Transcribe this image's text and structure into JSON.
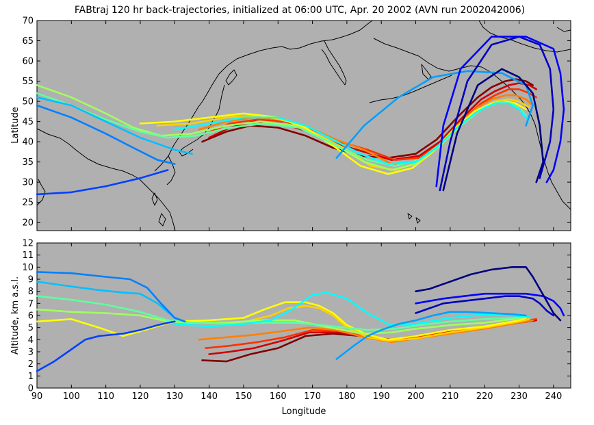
{
  "chart_data": [
    {
      "type": "line",
      "title": "FABtraj 120 hr back-trajectories, initialized at 06:00 UTC, Apr. 20 2002 (AVN run 2002042006)",
      "xlabel": "",
      "ylabel": "Latitude",
      "xlim": [
        90,
        245
      ],
      "ylim": [
        18,
        70
      ],
      "yticks": [
        20,
        25,
        30,
        35,
        40,
        45,
        50,
        55,
        60,
        65,
        70
      ],
      "background": "#b0b0b0",
      "grid": false,
      "coastlines": "North Pacific (East Asia, Japan, Kamchatka, Aleutians, Alaska, North America west coast)",
      "series": [
        {
          "color": "#800000",
          "x": [
            138,
            145,
            152,
            160,
            168,
            176,
            184,
            192,
            200,
            206,
            212,
            218,
            222,
            226,
            229,
            232,
            234
          ],
          "y": [
            40,
            42.5,
            44,
            43.5,
            41.5,
            38.5,
            36.5,
            36,
            37,
            40.5,
            46,
            51,
            53.5,
            55,
            55.5,
            55,
            54
          ]
        },
        {
          "color": "#cc0000",
          "x": [
            140,
            146,
            153,
            161,
            169,
            177,
            185,
            193,
            201,
            207,
            213,
            219,
            223,
            227,
            230,
            233,
            235
          ],
          "y": [
            41,
            43.5,
            45,
            44.5,
            42.5,
            39.5,
            37.5,
            35.5,
            36.5,
            40,
            45.5,
            50.5,
            52.5,
            54,
            54.5,
            54,
            53
          ]
        },
        {
          "color": "#ff3000",
          "x": [
            139,
            146,
            154,
            162,
            170,
            178,
            186,
            194,
            201,
            207,
            213,
            219,
            223,
            227,
            230,
            233,
            235
          ],
          "y": [
            42,
            44.5,
            45.5,
            45,
            43,
            40,
            38,
            35.5,
            36,
            39.5,
            45,
            49.5,
            51.5,
            53,
            53,
            52,
            51
          ]
        },
        {
          "color": "#ff8000",
          "x": [
            137,
            145,
            153,
            161,
            169,
            177,
            185,
            193,
            200,
            206,
            212,
            218,
            222,
            226,
            229,
            232,
            234
          ],
          "y": [
            43,
            45,
            46,
            45.5,
            43.5,
            40.5,
            38,
            34.5,
            35,
            38.5,
            44,
            48.5,
            50.5,
            51.5,
            51.5,
            50.5,
            49
          ]
        },
        {
          "color": "#ffd000",
          "x": [
            125,
            135,
            145,
            155,
            163,
            171,
            179,
            187,
            194,
            201,
            207,
            213,
            219,
            223,
            227,
            230,
            233
          ],
          "y": [
            44,
            44.5,
            46,
            46.5,
            45,
            42,
            38.5,
            34,
            33,
            35,
            39,
            44,
            48,
            50,
            50.5,
            50,
            48.5
          ]
        },
        {
          "color": "#ffff00",
          "x": [
            120,
            130,
            140,
            150,
            160,
            168,
            176,
            184,
            192,
            199,
            205,
            211,
            217,
            222,
            226,
            229,
            232
          ],
          "y": [
            44.5,
            45,
            46,
            47,
            46,
            43.5,
            39,
            34,
            32,
            33.5,
            37.5,
            43,
            47.5,
            49.5,
            50,
            49.5,
            48
          ]
        },
        {
          "color": "#a0ff60",
          "x": [
            90,
            100,
            110,
            118,
            126,
            135,
            145,
            155,
            165,
            175,
            185,
            193,
            200,
            207,
            213,
            219,
            224,
            228,
            231
          ],
          "y": [
            54,
            51,
            47,
            43.5,
            41.5,
            42,
            44,
            45,
            44,
            40,
            35,
            33,
            34.5,
            39,
            44,
            48,
            50,
            49.5,
            47.5
          ]
        },
        {
          "color": "#60ffa0",
          "x": [
            90,
            100,
            110,
            120,
            128,
            136,
            146,
            156,
            166,
            176,
            186,
            194,
            201,
            208,
            214,
            220,
            225,
            229,
            232
          ],
          "y": [
            52,
            49,
            45.5,
            42.5,
            41,
            41.5,
            43.5,
            44.5,
            43.5,
            39.5,
            35.5,
            34,
            35.5,
            40,
            45,
            48.5,
            50,
            49,
            46.5
          ]
        },
        {
          "color": "#00ffff",
          "x": [
            130,
            140,
            150,
            160,
            168,
            176,
            184,
            192,
            200,
            206,
            212,
            218,
            223,
            227,
            230,
            233
          ],
          "y": [
            43,
            44.5,
            46,
            46,
            44,
            40.5,
            37,
            34.5,
            35,
            38.5,
            43.5,
            47.5,
            49.5,
            49.5,
            48,
            45
          ]
        },
        {
          "color": "#00c0ff",
          "x": [
            90,
            100,
            110,
            120,
            130,
            135
          ],
          "y": [
            51,
            49,
            45,
            41,
            38,
            37
          ]
        },
        {
          "color": "#0080ff",
          "x": [
            90,
            100,
            110,
            118,
            125,
            130
          ],
          "y": [
            49,
            46,
            42,
            38.5,
            35.5,
            34.5
          ]
        },
        {
          "color": "#0040ff",
          "x": [
            90,
            100,
            110,
            120,
            128
          ],
          "y": [
            27,
            27.5,
            29,
            31,
            33
          ]
        },
        {
          "color": "#00a0ff",
          "x": [
            177,
            185,
            195,
            205,
            215,
            225,
            232,
            234,
            232
          ],
          "y": [
            36,
            44,
            51,
            56,
            57.5,
            57,
            54,
            49,
            44
          ]
        },
        {
          "color": "#0000c0",
          "x": [
            207,
            210,
            215,
            222,
            230,
            236,
            239,
            240,
            239,
            237,
            236
          ],
          "y": [
            28,
            40,
            55,
            64,
            66,
            64,
            58,
            48,
            40,
            34,
            31
          ]
        },
        {
          "color": "#0000ff",
          "x": [
            206,
            208,
            213,
            222,
            232,
            240,
            242,
            243,
            242,
            240,
            238
          ],
          "y": [
            29,
            44,
            58,
            66,
            66,
            63,
            57,
            48,
            40,
            33,
            30
          ]
        },
        {
          "color": "#000080",
          "x": [
            208,
            212,
            218,
            225,
            230,
            234,
            236,
            237,
            235
          ],
          "y": [
            28,
            42,
            54,
            58,
            56,
            52,
            44,
            35,
            30
          ]
        }
      ]
    },
    {
      "type": "line",
      "title": "",
      "xlabel": "Longitude",
      "ylabel": "Altitude, km a.s.l.",
      "xlim": [
        90,
        245
      ],
      "ylim": [
        0,
        12
      ],
      "xticks": [
        90,
        100,
        110,
        120,
        130,
        140,
        150,
        160,
        170,
        180,
        190,
        200,
        210,
        220,
        230,
        240
      ],
      "yticks": [
        0,
        1,
        2,
        3,
        4,
        5,
        6,
        7,
        8,
        9,
        10,
        11,
        12
      ],
      "background": "#b0b0b0",
      "grid": false,
      "series": [
        {
          "color": "#800000",
          "x": [
            138,
            145,
            152,
            160,
            168,
            176,
            184,
            192,
            200,
            210,
            220,
            230,
            234
          ],
          "y": [
            2.3,
            2.2,
            2.8,
            3.3,
            4.3,
            4.5,
            4.3,
            4.0,
            4.3,
            4.6,
            5.0,
            5.4,
            5.6
          ]
        },
        {
          "color": "#cc0000",
          "x": [
            140,
            146,
            153,
            161,
            169,
            177,
            185,
            193,
            201,
            210,
            220,
            230,
            235
          ],
          "y": [
            2.8,
            3.0,
            3.3,
            3.9,
            4.6,
            4.6,
            4.3,
            4.0,
            4.3,
            4.7,
            5.0,
            5.4,
            5.6
          ]
        },
        {
          "color": "#ff3000",
          "x": [
            139,
            146,
            154,
            162,
            170,
            178,
            186,
            194,
            201,
            210,
            220,
            230,
            235
          ],
          "y": [
            3.3,
            3.5,
            3.8,
            4.2,
            4.8,
            4.7,
            4.2,
            3.9,
            4.2,
            4.6,
            5.0,
            5.5,
            5.7
          ]
        },
        {
          "color": "#ff8000",
          "x": [
            137,
            145,
            153,
            161,
            169,
            177,
            185,
            193,
            200,
            210,
            220,
            230,
            234
          ],
          "y": [
            4.0,
            4.2,
            4.4,
            4.7,
            5.0,
            4.8,
            4.2,
            3.8,
            4.1,
            4.5,
            4.9,
            5.4,
            5.6
          ]
        },
        {
          "color": "#ffd000",
          "x": [
            152,
            158,
            163,
            168,
            172,
            176,
            180,
            186,
            192,
            200,
            210,
            220,
            230,
            233
          ],
          "y": [
            5.6,
            6.0,
            6.6,
            6.8,
            6.6,
            6.0,
            5.0,
            4.2,
            3.9,
            4.1,
            4.6,
            5.0,
            5.5,
            5.7
          ]
        },
        {
          "color": "#ffff00",
          "x": [
            90,
            100,
            108,
            115,
            120,
            126,
            130,
            140,
            150,
            156,
            162,
            168,
            172,
            176,
            180,
            186,
            192,
            200,
            210,
            220,
            230,
            232
          ],
          "y": [
            5.5,
            5.7,
            5.0,
            4.3,
            4.7,
            5.2,
            5.5,
            5.6,
            5.8,
            6.5,
            7.1,
            7.1,
            6.8,
            6.2,
            5.2,
            4.4,
            4.0,
            4.3,
            4.8,
            5.1,
            5.6,
            5.8
          ]
        },
        {
          "color": "#a0ff60",
          "x": [
            90,
            100,
            110,
            120,
            128,
            135,
            145,
            155,
            165,
            175,
            185,
            193,
            200,
            210,
            220,
            228,
            231
          ],
          "y": [
            6.5,
            6.3,
            6.2,
            6.0,
            5.5,
            5.4,
            5.4,
            5.6,
            5.6,
            5.0,
            4.5,
            4.6,
            4.9,
            5.2,
            5.4,
            5.7,
            5.8
          ]
        },
        {
          "color": "#60ffa0",
          "x": [
            90,
            100,
            110,
            120,
            128,
            136,
            146,
            156,
            166,
            176,
            186,
            194,
            201,
            210,
            220,
            228,
            232
          ],
          "y": [
            7.6,
            7.3,
            6.9,
            6.3,
            5.6,
            5.4,
            5.3,
            5.4,
            5.4,
            5.1,
            4.8,
            4.9,
            5.2,
            5.5,
            5.7,
            5.8,
            5.9
          ]
        },
        {
          "color": "#00ffff",
          "x": [
            130,
            140,
            150,
            158,
            164,
            170,
            174,
            180,
            186,
            192,
            200,
            210,
            220,
            228,
            233
          ],
          "y": [
            5.3,
            5.1,
            5.3,
            5.6,
            6.5,
            7.7,
            7.9,
            7.4,
            6.2,
            5.3,
            5.3,
            5.8,
            6.1,
            6.0,
            5.9
          ]
        },
        {
          "color": "#00c0ff",
          "x": [
            90,
            100,
            108,
            115,
            120,
            125,
            130,
            133
          ],
          "y": [
            8.8,
            8.4,
            8.1,
            7.9,
            7.8,
            7.0,
            5.8,
            5.5
          ]
        },
        {
          "color": "#0080ff",
          "x": [
            90,
            100,
            110,
            117,
            122,
            126,
            130,
            133
          ],
          "y": [
            9.6,
            9.5,
            9.2,
            9.0,
            8.3,
            7.0,
            5.8,
            5.5
          ]
        },
        {
          "color": "#0040ff",
          "x": [
            90,
            95,
            100,
            104,
            108,
            115,
            120,
            125,
            128,
            130
          ],
          "y": [
            1.4,
            2.2,
            3.2,
            4.0,
            4.3,
            4.5,
            4.8,
            5.2,
            5.4,
            5.5
          ]
        },
        {
          "color": "#00a0ff",
          "x": [
            177,
            182,
            186,
            190,
            195,
            200,
            205,
            210,
            215,
            222,
            228,
            232
          ],
          "y": [
            2.4,
            3.5,
            4.3,
            4.8,
            5.3,
            5.6,
            6.0,
            6.3,
            6.3,
            6.2,
            6.1,
            6.0
          ]
        },
        {
          "color": "#0000c0",
          "x": [
            200,
            204,
            208,
            214,
            220,
            226,
            230,
            234,
            236,
            238,
            240
          ],
          "y": [
            6.2,
            6.6,
            7.0,
            7.2,
            7.4,
            7.6,
            7.6,
            7.4,
            7.0,
            6.4,
            6.0
          ]
        },
        {
          "color": "#0000ff",
          "x": [
            200,
            204,
            208,
            214,
            220,
            226,
            232,
            237,
            240,
            242,
            243
          ],
          "y": [
            7.0,
            7.2,
            7.4,
            7.6,
            7.8,
            7.8,
            7.8,
            7.6,
            7.2,
            6.6,
            6.0
          ]
        },
        {
          "color": "#000080",
          "x": [
            200,
            204,
            210,
            216,
            222,
            228,
            232,
            234,
            236,
            238,
            240,
            242
          ],
          "y": [
            8.0,
            8.2,
            8.8,
            9.4,
            9.8,
            10.0,
            10.0,
            9.2,
            8.2,
            7.2,
            6.2,
            5.6
          ]
        }
      ]
    }
  ]
}
